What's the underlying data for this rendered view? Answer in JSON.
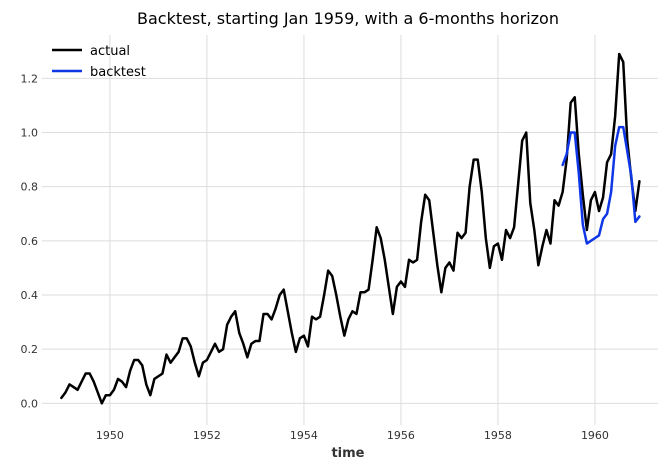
{
  "chart_data": {
    "type": "line",
    "title": "Backtest, starting Jan 1959, with a 6-months horizon",
    "xlabel": "time",
    "ylabel": "",
    "xlim": [
      1948.6,
      1961.3
    ],
    "ylim": [
      -0.08,
      1.36
    ],
    "xticks": [
      1950,
      1952,
      1954,
      1956,
      1958,
      1960
    ],
    "yticks": [
      0.0,
      0.2,
      0.4,
      0.6,
      0.8,
      1.0,
      1.2
    ],
    "xtick_labels": [
      "1950",
      "1952",
      "1954",
      "1956",
      "1958",
      "1960"
    ],
    "ytick_labels": [
      "0.0",
      "0.2",
      "0.4",
      "0.6",
      "0.8",
      "1.0",
      "1.2"
    ],
    "grid": true,
    "legend_position": "top-left",
    "series": [
      {
        "name": "actual",
        "color": "#000000",
        "x_start": "1949-01",
        "x_step": "1 month",
        "values": [
          0.02,
          0.04,
          0.07,
          0.06,
          0.05,
          0.08,
          0.11,
          0.11,
          0.08,
          0.04,
          0.0,
          0.03,
          0.03,
          0.05,
          0.09,
          0.08,
          0.06,
          0.12,
          0.16,
          0.16,
          0.14,
          0.07,
          0.03,
          0.09,
          0.1,
          0.11,
          0.18,
          0.15,
          0.17,
          0.19,
          0.24,
          0.24,
          0.21,
          0.15,
          0.1,
          0.15,
          0.16,
          0.19,
          0.22,
          0.19,
          0.2,
          0.29,
          0.32,
          0.34,
          0.26,
          0.22,
          0.17,
          0.22,
          0.23,
          0.23,
          0.33,
          0.33,
          0.31,
          0.35,
          0.4,
          0.42,
          0.34,
          0.26,
          0.19,
          0.24,
          0.25,
          0.21,
          0.32,
          0.31,
          0.32,
          0.4,
          0.49,
          0.47,
          0.4,
          0.32,
          0.25,
          0.31,
          0.34,
          0.33,
          0.41,
          0.41,
          0.42,
          0.53,
          0.65,
          0.61,
          0.53,
          0.43,
          0.33,
          0.43,
          0.45,
          0.43,
          0.53,
          0.52,
          0.53,
          0.67,
          0.77,
          0.75,
          0.63,
          0.51,
          0.41,
          0.5,
          0.52,
          0.49,
          0.63,
          0.61,
          0.63,
          0.8,
          0.9,
          0.9,
          0.78,
          0.61,
          0.5,
          0.58,
          0.59,
          0.53,
          0.64,
          0.61,
          0.65,
          0.81,
          0.97,
          1.0,
          0.74,
          0.64,
          0.51,
          0.58,
          0.64,
          0.59,
          0.75,
          0.73,
          0.78,
          0.9,
          1.11,
          1.13,
          0.92,
          0.77,
          0.64,
          0.75,
          0.78,
          0.71,
          0.76,
          0.89,
          0.92,
          1.06,
          1.29,
          1.26,
          0.97,
          0.83,
          0.71,
          0.82
        ]
      },
      {
        "name": "backtest",
        "color": "#0f37e6",
        "x_start": "1959-05",
        "x_step": "1 month",
        "values": [
          0.88,
          0.92,
          1.0,
          1.0,
          0.85,
          0.66,
          0.59,
          0.6,
          0.61,
          0.62,
          0.68,
          0.7,
          0.78,
          0.95,
          1.02,
          1.02,
          0.93,
          0.84,
          0.67,
          0.69
        ]
      }
    ]
  }
}
